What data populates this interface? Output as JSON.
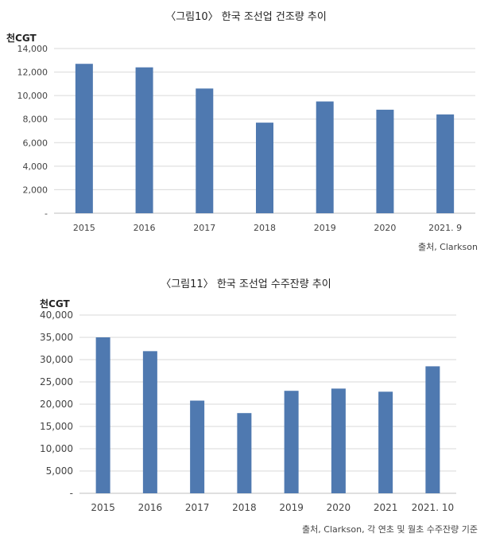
{
  "chart_data": [
    {
      "type": "bar",
      "title": "〈그림10〉 한국 조선업 건조량 추이",
      "unit": "천CGT",
      "categories": [
        "2015",
        "2016",
        "2017",
        "2018",
        "2019",
        "2020",
        "2021. 9"
      ],
      "values": [
        12700,
        12400,
        10600,
        7700,
        9500,
        8800,
        8400
      ],
      "yticks": [
        "-",
        "2,000",
        "4,000",
        "6,000",
        "8,000",
        "10,000",
        "12,000",
        "14,000"
      ],
      "ylim": [
        0,
        14000
      ],
      "grid": true,
      "bar_color": "#4f79b0",
      "source": "출처, Clarkson"
    },
    {
      "type": "bar",
      "title": "〈그림11〉 한국 조선업 수주잔량 추이",
      "unit": "천CGT",
      "categories": [
        "2015",
        "2016",
        "2017",
        "2018",
        "2019",
        "2020",
        "2021",
        "2021. 10"
      ],
      "values": [
        35000,
        31900,
        20800,
        18000,
        23000,
        23500,
        22800,
        28500
      ],
      "yticks": [
        "-",
        "5,000",
        "10,000",
        "15,000",
        "20,000",
        "25,000",
        "30,000",
        "35,000",
        "40,000"
      ],
      "ylim": [
        0,
        40000
      ],
      "grid": true,
      "bar_color": "#4f79b0",
      "source": "출처, Clarkson, 각 연초 및 월초 수주잔량 기준"
    }
  ]
}
